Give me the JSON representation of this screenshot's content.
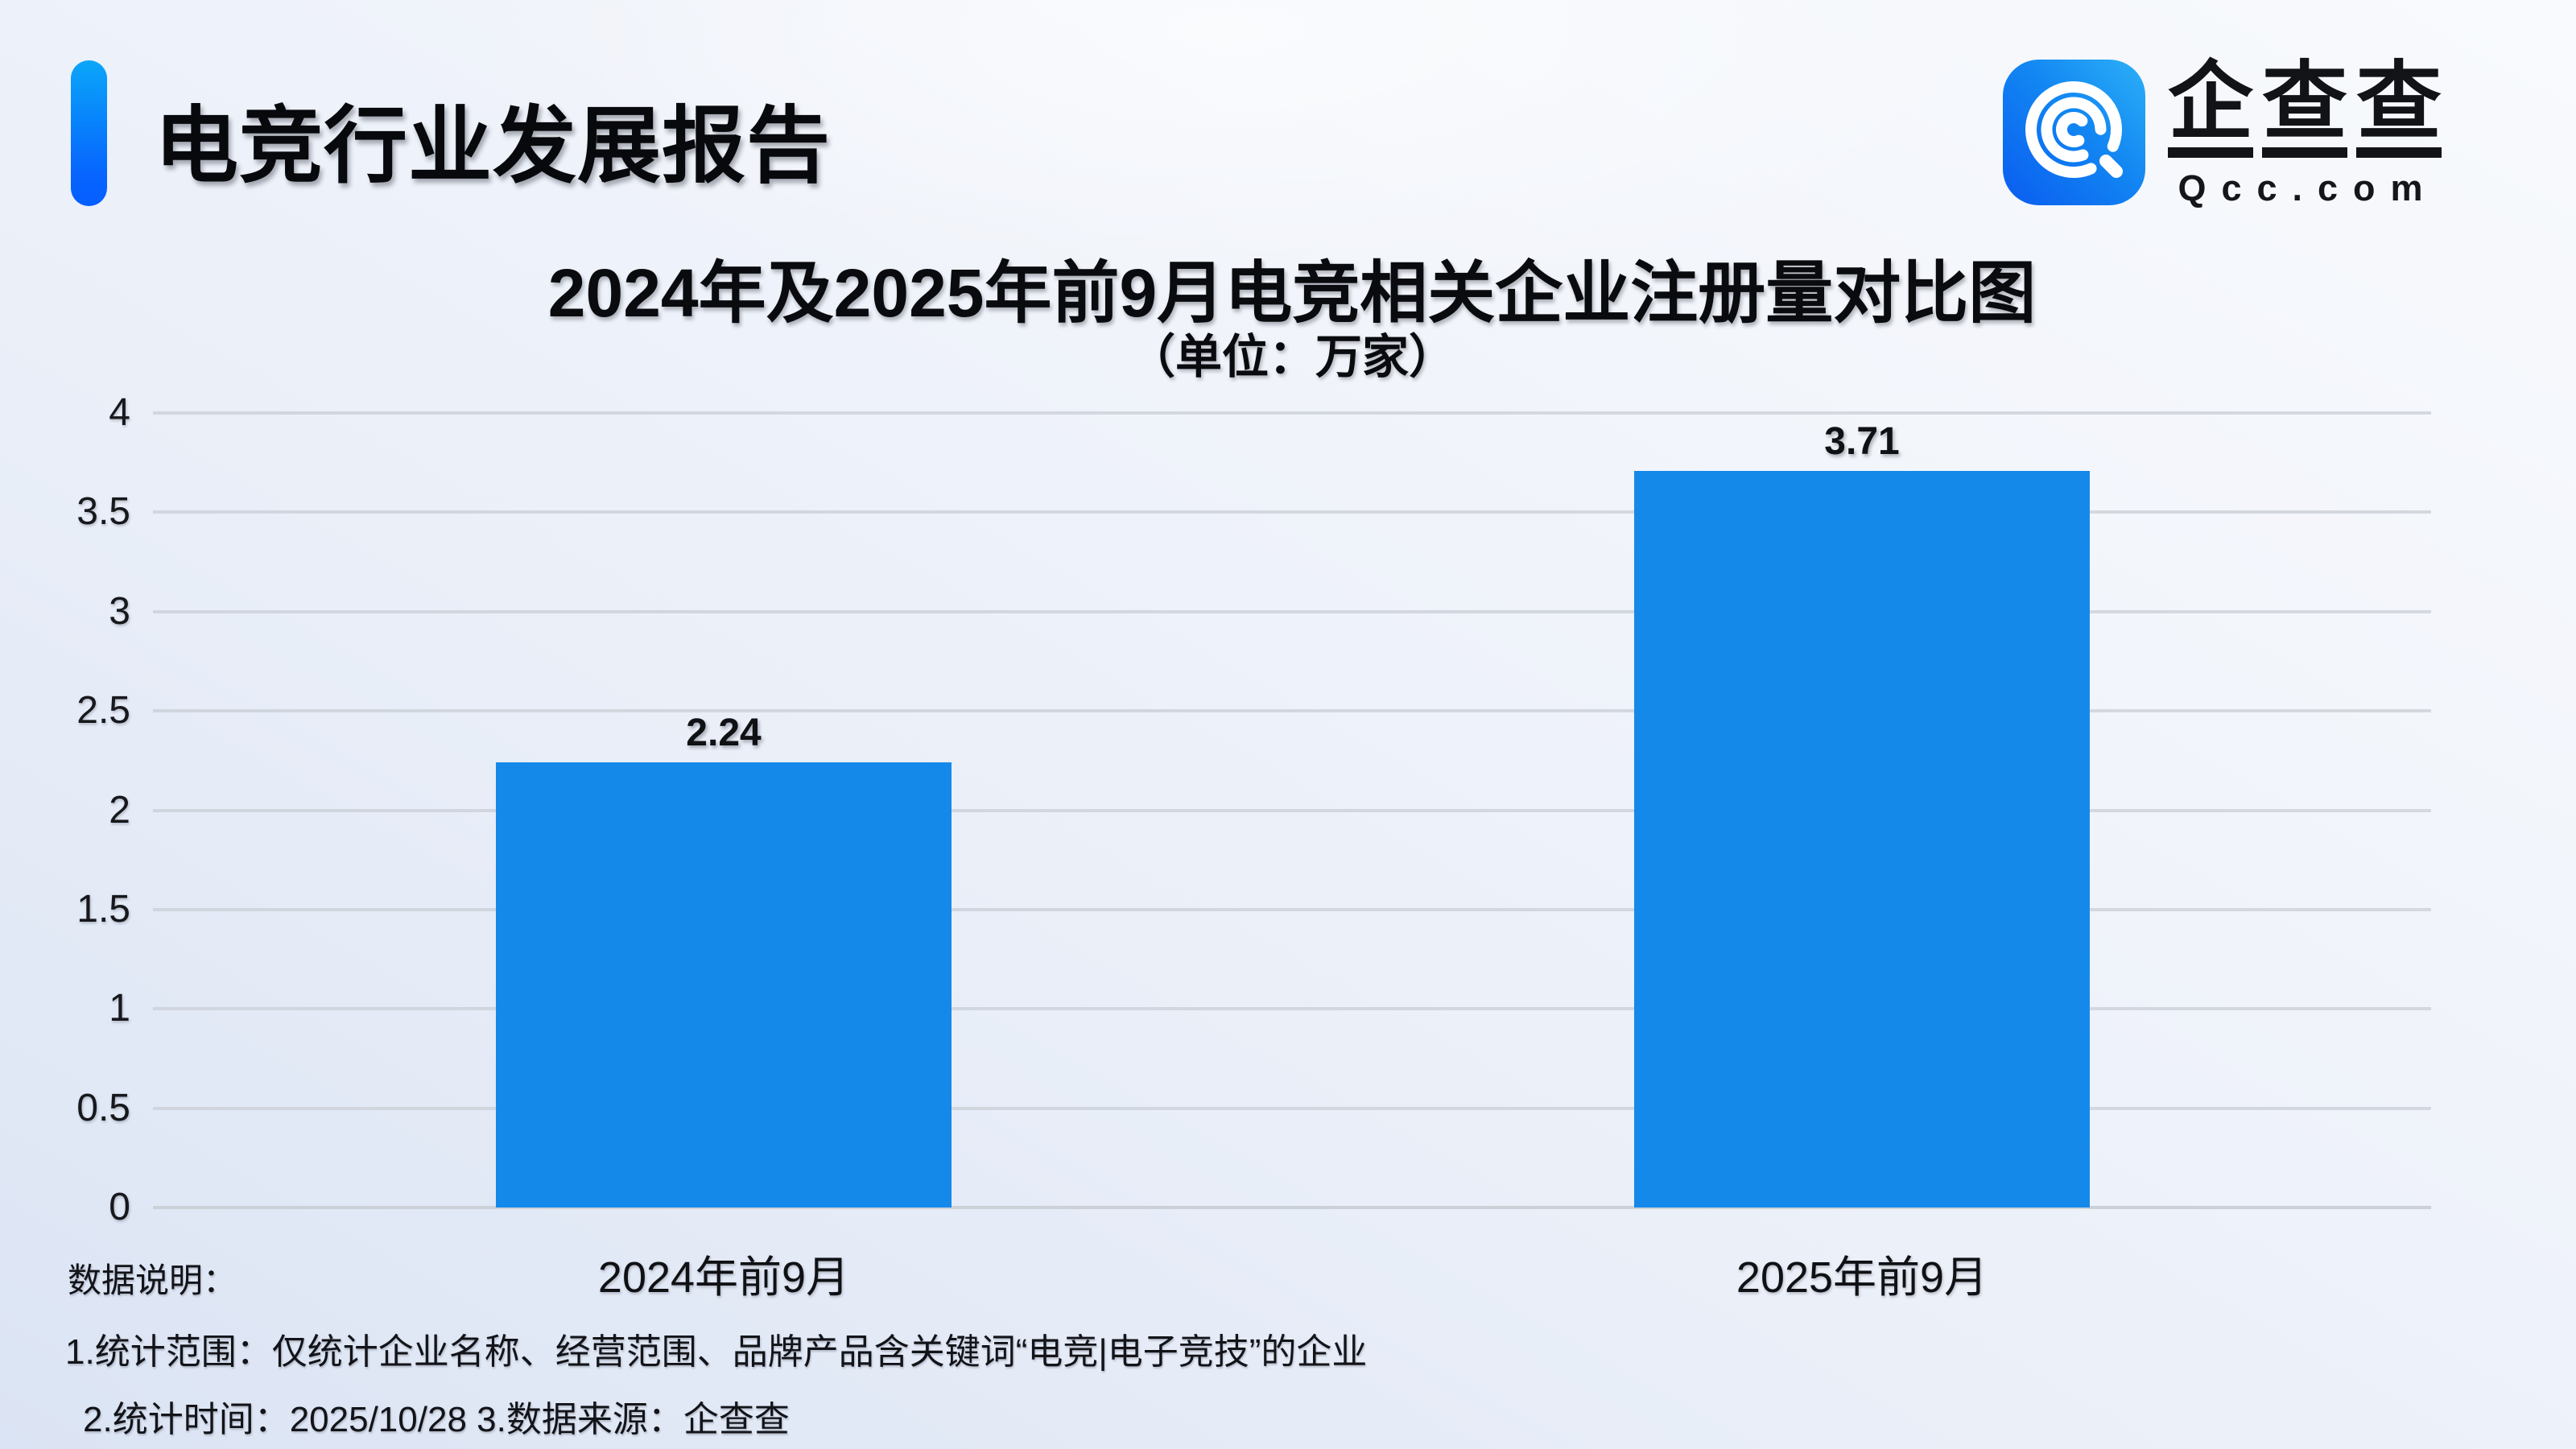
{
  "header": {
    "title": "电竞行业发展报告"
  },
  "logo": {
    "icon": "qcc-magnifier-icon",
    "icon_gradient": [
      "#0a63f0",
      "#27abf7"
    ],
    "chars": [
      "企",
      "查",
      "查"
    ],
    "domain": "Qcc.com"
  },
  "chart_data": {
    "type": "bar",
    "title": "2024年及2025年前9月电竞相关企业注册量对比图",
    "subtitle": "（单位：万家）",
    "unit": "万家",
    "categories": [
      "2024年前9月",
      "2025年前9月"
    ],
    "values": [
      2.24,
      3.71
    ],
    "value_labels": [
      "2.24",
      "3.71"
    ],
    "ylim": [
      0,
      4
    ],
    "yticks": [
      0,
      0.5,
      1,
      1.5,
      2,
      2.5,
      3,
      3.5,
      4
    ],
    "grid": true,
    "legend": false,
    "bar_color": "#1589ea",
    "gridline_color": "#cdd1d8"
  },
  "footnotes": {
    "label": "数据说明：",
    "line1": "1.统计范围：仅统计企业名称、经营范围、品牌产品含关键词“电竞|电子竞技”的企业",
    "line2": "2.统计时间：2025/10/28 3.数据来源：企查查"
  },
  "colors": {
    "accent_bar_top": "#0aa6f9",
    "accent_bar_bottom": "#055eff",
    "background_dark_corner": "#dbe4f4",
    "background_light_corner": "#f8fafd",
    "text": "#0b0c10"
  }
}
